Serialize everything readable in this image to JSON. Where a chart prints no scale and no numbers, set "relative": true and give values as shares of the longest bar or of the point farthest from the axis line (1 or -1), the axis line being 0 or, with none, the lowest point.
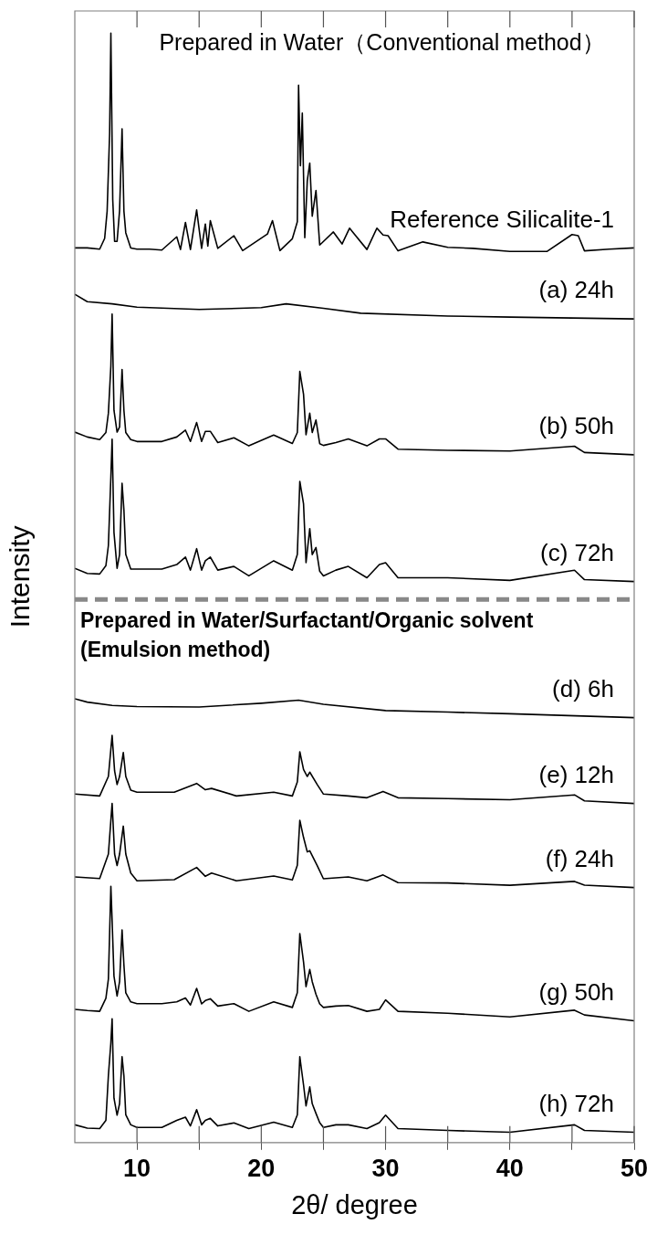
{
  "chart_data": {
    "type": "line",
    "relative": true,
    "xlabel": "2θ/ degree",
    "ylabel": "Intensity",
    "xlim": [
      5,
      50
    ],
    "xticks": [
      10,
      {
        "value": 15,
        "label": null
      },
      20,
      {
        "value": 25,
        "label": null
      },
      30,
      {
        "value": 35,
        "label": null
      },
      40,
      {
        "value": 45,
        "label": null
      },
      50
    ],
    "marker": "none",
    "line_style": "solid",
    "legend": false,
    "grid": false,
    "annotations": [
      "Prepared in Water（Conventional method）",
      "Prepared in Water/Surfactant/Organic solvent (Emulsion method)"
    ],
    "ref_lines": [
      {
        "axis": "y",
        "value": 0.4896,
        "color": "#888888",
        "line_style": "dashed"
      }
    ],
    "series": [
      {
        "name": "Reference Silicalite-1",
        "color": "#000000",
        "x": [
          5,
          6,
          7,
          7.4,
          7.6,
          7.8,
          7.9,
          8.05,
          8.2,
          8.4,
          8.6,
          8.8,
          8.95,
          9.1,
          9.5,
          10,
          11,
          12,
          13.2,
          13.5,
          13.9,
          14.3,
          14.8,
          15.2,
          15.5,
          15.7,
          15.9,
          16.5,
          17.8,
          18.5,
          20.5,
          20.9,
          21.5,
          22.5,
          22.9,
          23.0,
          23.15,
          23.3,
          23.5,
          23.7,
          23.9,
          24.1,
          24.4,
          24.7,
          25.8,
          26.5,
          27.1,
          28.5,
          29.3,
          29.8,
          30.2,
          31,
          33,
          35,
          37,
          40,
          43,
          45,
          45.5,
          46,
          48,
          50
        ],
        "values": [
          0.8064,
          0.8064,
          0.8053,
          0.815,
          0.8396,
          0.91,
          1,
          0.85,
          0.8123,
          0.8123,
          0.84,
          0.9137,
          0.8396,
          0.82,
          0.8064,
          0.8053,
          0.8053,
          0.8045,
          0.8164,
          0.805,
          0.8294,
          0.805,
          0.8406,
          0.806,
          0.828,
          0.808,
          0.831,
          0.806,
          0.8174,
          0.804,
          0.819,
          0.831,
          0.804,
          0.8147,
          0.83,
          0.953,
          0.8805,
          0.928,
          0.8157,
          0.8669,
          0.8829,
          0.835,
          0.8582,
          0.809,
          0.8208,
          0.81,
          0.8242,
          0.805,
          0.8242,
          0.818,
          0.8174,
          0.8038,
          0.8118,
          0.807,
          0.806,
          0.8033,
          0.8033,
          0.8185,
          0.8174,
          0.8038,
          0.8053,
          0.8064
        ]
      },
      {
        "name": "(a) 24h",
        "color": "#000000",
        "x": [
          5,
          6,
          8,
          10,
          15,
          20,
          22,
          25,
          28,
          35,
          40,
          50
        ],
        "values": [
          0.7646,
          0.758,
          0.756,
          0.753,
          0.7509,
          0.7526,
          0.756,
          0.752,
          0.7476,
          0.745,
          0.7441,
          0.7424
        ]
      },
      {
        "name": "(b) 50h",
        "color": "#000000",
        "x": [
          5,
          6,
          7,
          7.5,
          7.7,
          7.9,
          8.0,
          8.15,
          8.4,
          8.6,
          8.8,
          8.95,
          9.1,
          9.5,
          10,
          12,
          13.2,
          13.9,
          14.3,
          14.8,
          15.2,
          15.5,
          15.9,
          16.5,
          17.8,
          19,
          21,
          22.5,
          22.9,
          23.1,
          23.4,
          23.6,
          23.9,
          24.1,
          24.4,
          24.7,
          25,
          26,
          27,
          28.5,
          29.5,
          30,
          31,
          35,
          40,
          45.2,
          46,
          50
        ],
        "values": [
          0.6404,
          0.636,
          0.6336,
          0.64,
          0.6574,
          0.7,
          0.7468,
          0.66,
          0.6404,
          0.645,
          0.6967,
          0.66,
          0.64,
          0.6336,
          0.6319,
          0.6319,
          0.636,
          0.6421,
          0.632,
          0.649,
          0.632,
          0.6411,
          0.6411,
          0.631,
          0.6353,
          0.628,
          0.6377,
          0.6301,
          0.64,
          0.6951,
          0.6745,
          0.638,
          0.6574,
          0.64,
          0.6513,
          0.63,
          0.6284,
          0.631,
          0.6343,
          0.628,
          0.6343,
          0.6343,
          0.625,
          0.624,
          0.6234,
          0.6277,
          0.622,
          0.6199
        ]
      },
      {
        "name": "(c) 72h",
        "color": "#000000",
        "x": [
          5,
          6,
          7,
          7.5,
          7.7,
          7.9,
          8.0,
          8.15,
          8.4,
          8.6,
          8.8,
          8.95,
          9.1,
          9.5,
          10,
          12,
          13.2,
          13.9,
          14.3,
          14.8,
          15.2,
          15.5,
          15.9,
          16.5,
          17.8,
          19,
          21,
          22.5,
          22.9,
          23.1,
          23.4,
          23.6,
          23.9,
          24.1,
          24.4,
          24.7,
          25,
          26,
          27,
          28.5,
          29.5,
          30,
          31,
          35,
          40,
          45.2,
          46,
          50
        ],
        "values": [
          0.5176,
          0.513,
          0.5125,
          0.52,
          0.5381,
          0.6,
          0.634,
          0.55,
          0.5176,
          0.53,
          0.5943,
          0.57,
          0.53,
          0.517,
          0.5169,
          0.5169,
          0.521,
          0.5278,
          0.516,
          0.5353,
          0.516,
          0.5244,
          0.5278,
          0.516,
          0.5193,
          0.5108,
          0.5244,
          0.5159,
          0.53,
          0.596,
          0.5756,
          0.5227,
          0.5534,
          0.53,
          0.5364,
          0.515,
          0.5108,
          0.516,
          0.5193,
          0.5091,
          0.521,
          0.5227,
          0.5091,
          0.5091,
          0.5067,
          0.5159,
          0.5074,
          0.5057
        ]
      },
      {
        "name": "(d) 6h",
        "color": "#000000",
        "x": [
          5,
          6,
          8,
          10,
          15,
          20,
          23,
          25,
          30,
          35,
          40,
          50
        ],
        "values": [
          0.4,
          0.397,
          0.394,
          0.393,
          0.3926,
          0.396,
          0.3987,
          0.395,
          0.3894,
          0.388,
          0.3865,
          0.383
        ]
      },
      {
        "name": "(e) 12h",
        "color": "#000000",
        "x": [
          5,
          7,
          7.7,
          8.0,
          8.2,
          8.4,
          8.6,
          8.9,
          9.1,
          9.5,
          10,
          13,
          14.8,
          15.5,
          16,
          18,
          21,
          22.5,
          22.9,
          23.1,
          23.4,
          23.7,
          23.9,
          24.5,
          25,
          27,
          28.5,
          29.8,
          31,
          35,
          40,
          45.2,
          46,
          50
        ],
        "values": [
          0.3141,
          0.3124,
          0.33,
          0.367,
          0.335,
          0.3227,
          0.33,
          0.3516,
          0.33,
          0.3176,
          0.3158,
          0.3158,
          0.3237,
          0.318,
          0.3192,
          0.3124,
          0.3158,
          0.3124,
          0.325,
          0.3523,
          0.3363,
          0.33,
          0.3339,
          0.3227,
          0.3141,
          0.3124,
          0.3108,
          0.3165,
          0.3108,
          0.31,
          0.309,
          0.3134,
          0.308,
          0.3056
        ]
      },
      {
        "name": "(f) 24h",
        "color": "#000000",
        "x": [
          5,
          7,
          7.7,
          8.0,
          8.2,
          8.4,
          8.6,
          8.9,
          9.1,
          9.5,
          10,
          13,
          14.8,
          15.5,
          16,
          18,
          21,
          22.5,
          22.9,
          23.1,
          23.4,
          23.7,
          23.9,
          24.5,
          25,
          27,
          28.5,
          29.8,
          31,
          35,
          40,
          45.2,
          46,
          50
        ],
        "values": [
          0.2395,
          0.238,
          0.26,
          0.3056,
          0.26,
          0.2497,
          0.26,
          0.2852,
          0.26,
          0.2429,
          0.236,
          0.237,
          0.248,
          0.24,
          0.2429,
          0.236,
          0.2402,
          0.2367,
          0.25,
          0.2905,
          0.275,
          0.262,
          0.263,
          0.2497,
          0.2378,
          0.2395,
          0.236,
          0.2412,
          0.2343,
          0.234,
          0.2319,
          0.2354,
          0.232,
          0.2299
        ]
      },
      {
        "name": "(g) 50h",
        "color": "#000000",
        "x": [
          5,
          6,
          7,
          7.5,
          7.7,
          7.9,
          8.0,
          8.15,
          8.4,
          8.6,
          8.8,
          8.95,
          9.1,
          9.5,
          10,
          12,
          13.2,
          13.9,
          14.3,
          14.8,
          15.2,
          15.5,
          15.9,
          16.5,
          17.8,
          19,
          21,
          22.5,
          22.9,
          23.1,
          23.4,
          23.6,
          23.9,
          24.1,
          24.4,
          24.7,
          25,
          26,
          27,
          28.5,
          29.5,
          30,
          31,
          35,
          40,
          45.2,
          46,
          50
        ],
        "values": [
          0.12,
          0.119,
          0.1183,
          0.13,
          0.1473,
          0.2309,
          0.2,
          0.15,
          0.132,
          0.145,
          0.1916,
          0.16,
          0.135,
          0.1268,
          0.1252,
          0.1252,
          0.1269,
          0.1303,
          0.124,
          0.139,
          0.125,
          0.128,
          0.1296,
          0.123,
          0.1252,
          0.1183,
          0.1269,
          0.1218,
          0.135,
          0.1884,
          0.1627,
          0.1405,
          0.156,
          0.145,
          0.1337,
          0.125,
          0.1218,
          0.123,
          0.1235,
          0.1183,
          0.12,
          0.1286,
          0.1183,
          0.1166,
          0.1132,
          0.1193,
          0.115,
          0.1098
        ]
      },
      {
        "name": "(h) 72h",
        "color": "#000000",
        "x": [
          5,
          6,
          7,
          7.5,
          7.7,
          7.9,
          8.0,
          8.15,
          8.4,
          8.6,
          8.8,
          8.95,
          9.1,
          9.5,
          10,
          12,
          13.2,
          13.9,
          14.3,
          14.8,
          15.2,
          15.5,
          15.9,
          16.5,
          17.8,
          19,
          21,
          22.5,
          22.9,
          23.1,
          23.4,
          23.6,
          23.9,
          24.1,
          24.4,
          24.7,
          25,
          26,
          27,
          28.5,
          29.5,
          30,
          31,
          35,
          40,
          45.2,
          46,
          50
        ],
        "values": [
          0.016,
          0.013,
          0.0126,
          0.02,
          0.0604,
          0.09,
          0.1115,
          0.04,
          0.0247,
          0.035,
          0.0774,
          0.06,
          0.025,
          0.016,
          0.0136,
          0.0136,
          0.02,
          0.0229,
          0.015,
          0.0296,
          0.016,
          0.02,
          0.0218,
          0.015,
          0.0177,
          0.0126,
          0.0184,
          0.0136,
          0.025,
          0.0774,
          0.0519,
          0.0331,
          0.0502,
          0.035,
          0.0263,
          0.018,
          0.0136,
          0.016,
          0.016,
          0.0126,
          0.018,
          0.0247,
          0.0126,
          0.0109,
          0.0093,
          0.016,
          0.011,
          0.0093
        ]
      }
    ]
  }
}
